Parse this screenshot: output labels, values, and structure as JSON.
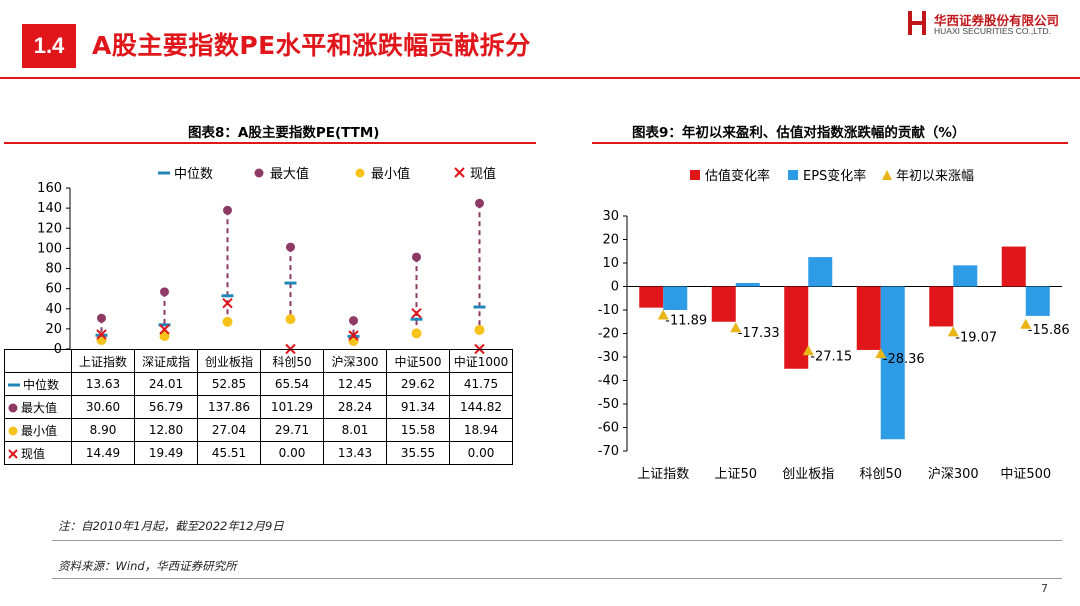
{
  "header": {
    "section_number": "1.4",
    "title": "A股主要指数PE水平和涨跌幅贡献拆分",
    "logo_cn": "华西证券股份有限公司",
    "logo_en": "HUAXI SECURITIES CO.,LTD."
  },
  "left_chart": {
    "title": "图表8：A股主要指数PE(TTM)",
    "legend": [
      "中位数",
      "最大值",
      "最小值",
      "现值"
    ],
    "table_row_labels": [
      "中位数",
      "最大值",
      "最小值",
      "现值"
    ],
    "table_values": {
      "median": [
        "13.63",
        "24.01",
        "52.85",
        "65.54",
        "12.45",
        "29.62",
        "41.75"
      ],
      "max": [
        "30.60",
        "56.79",
        "137.86",
        "101.29",
        "28.24",
        "91.34",
        "144.82"
      ],
      "min": [
        "8.90",
        "12.80",
        "27.04",
        "29.71",
        "8.01",
        "15.58",
        "18.94"
      ],
      "current": [
        "14.49",
        "19.49",
        "45.51",
        "0.00",
        "13.43",
        "35.55",
        "0.00"
      ]
    }
  },
  "right_chart": {
    "title": "图表9：年初以来盈利、估值对指数涨跌幅的贡献（%）",
    "legend": [
      "估值变化率",
      "EPS变化率",
      "年初以来涨幅"
    ]
  },
  "chart_data": [
    {
      "type": "scatter",
      "title": "图表8：A股主要指数PE(TTM)",
      "categories": [
        "上证指数",
        "深证成指",
        "创业板指",
        "科创50",
        "沪深300",
        "中证500",
        "中证1000"
      ],
      "series": [
        {
          "name": "中位数",
          "values": [
            13.63,
            24.01,
            52.85,
            65.54,
            12.45,
            29.62,
            41.75
          ]
        },
        {
          "name": "最大值",
          "values": [
            30.6,
            56.79,
            137.86,
            101.29,
            28.24,
            91.34,
            144.82
          ]
        },
        {
          "name": "最小值",
          "values": [
            8.9,
            12.8,
            27.04,
            29.71,
            8.01,
            15.58,
            18.94
          ]
        },
        {
          "name": "现值",
          "values": [
            14.49,
            19.49,
            45.51,
            0.0,
            13.43,
            35.55,
            0.0
          ]
        }
      ],
      "ylim": [
        0,
        160
      ],
      "yticks": [
        0,
        20,
        40,
        60,
        80,
        100,
        120,
        140,
        160
      ],
      "legend_position": "top"
    },
    {
      "type": "bar",
      "title": "图表9：年初以来盈利、估值对指数涨跌幅的贡献（%）",
      "categories": [
        "上证指数",
        "上证50",
        "创业板指",
        "科创50",
        "沪深300",
        "中证500"
      ],
      "series": [
        {
          "name": "估值变化率",
          "values": [
            -9,
            -15,
            -35,
            -27,
            -17,
            17
          ]
        },
        {
          "name": "EPS变化率",
          "values": [
            -10,
            1.5,
            12.5,
            -65,
            9,
            -12.5
          ]
        },
        {
          "name": "年初以来涨幅",
          "values": [
            -11.89,
            -17.33,
            -27.15,
            -28.36,
            -19.07,
            -15.86
          ]
        }
      ],
      "data_labels": [
        "-11.89",
        "-17.33",
        "-27.15",
        "-28.36",
        "-19.07",
        "-15.86"
      ],
      "ylim": [
        -70,
        30
      ],
      "yticks": [
        30,
        20,
        10,
        0,
        -10,
        -20,
        -30,
        -40,
        -50,
        -60,
        -70
      ],
      "legend_position": "top"
    }
  ],
  "footer": {
    "note": "注：自2010年1月起，截至2022年12月9日",
    "source": "资料来源：Wind，华西证券研究所",
    "page": "7"
  },
  "colors": {
    "brand_red": "#e0161a",
    "eps_blue": "#2e9be6",
    "max_purple": "#8e3a66",
    "min_yellow": "#f7c21a",
    "median_teal": "#1f88b8",
    "triangle_gold": "#e8b416"
  }
}
